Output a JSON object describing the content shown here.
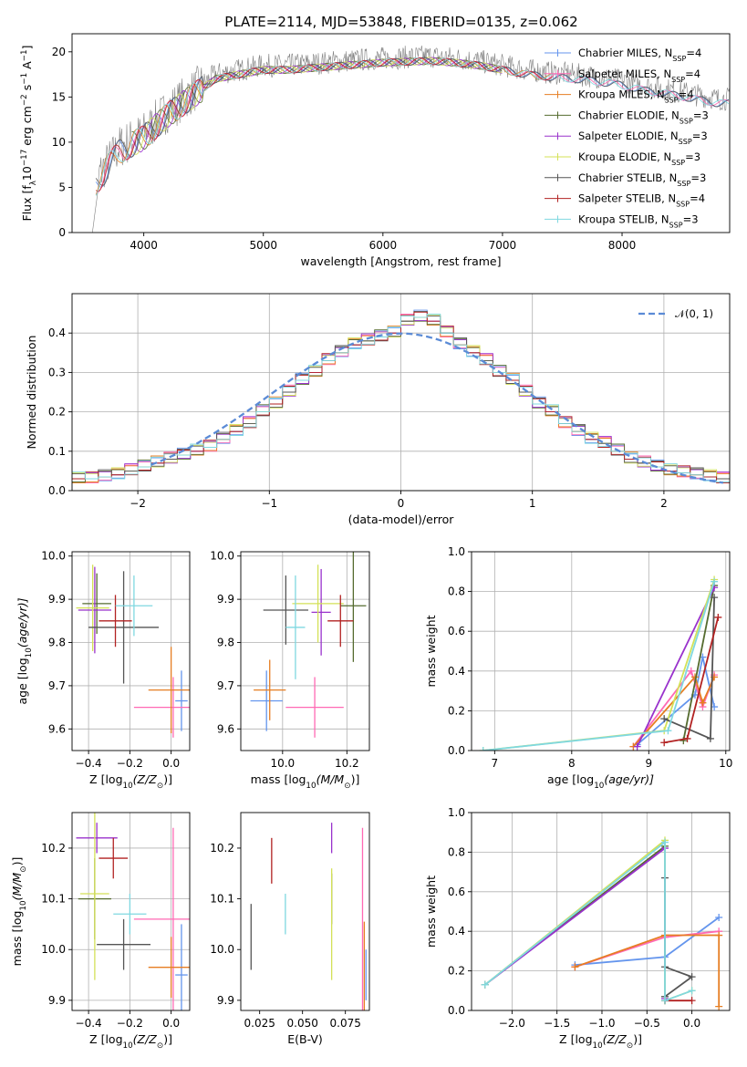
{
  "chart_data": [
    {
      "type": "line",
      "title": "PLATE=2114, MJD=53848, FIBERID=0135, z=0.062",
      "xlabel": "wavelength [Angstrom, rest frame]",
      "ylabel": "Flux [f$_\\lambda$10$^{-17}$ erg cm$^{-2}$ s$^{-1}$ A$^{-1}$]",
      "ylabel_parts": [
        "Flux [f",
        "λ",
        "10",
        "−17",
        " erg cm",
        "−2",
        " s",
        "−1",
        " A",
        "−1",
        "]"
      ],
      "xlim": [
        3400,
        8900
      ],
      "ylim": [
        0,
        22
      ],
      "xticks": [
        4000,
        5000,
        6000,
        7000,
        8000
      ],
      "yticks": [
        0,
        5,
        10,
        15,
        20
      ],
      "grid": false,
      "legend_position": "top-right",
      "x": [
        3600,
        3800,
        4000,
        4200,
        4400,
        4600,
        4800,
        5000,
        5200,
        5400,
        5600,
        5800,
        6000,
        6200,
        6400,
        6600,
        6800,
        7000,
        7200,
        7400,
        7600,
        7800,
        8000,
        8200,
        8400,
        8600,
        8800
      ],
      "y": [
        6,
        9.5,
        11,
        13.5,
        15.5,
        17.5,
        18,
        18.5,
        18.5,
        18.7,
        18.9,
        19.1,
        19.3,
        19.4,
        19.5,
        19.3,
        19,
        18.5,
        18,
        17.7,
        17.5,
        17.2,
        16.8,
        16.2,
        15.8,
        15.3,
        14.8
      ],
      "series": [
        {
          "name": "Chabrier MILES, N",
          "sub": "SSP",
          "suffix": "=4",
          "color": "#6495ed"
        },
        {
          "name": "Salpeter MILES, N",
          "sub": "SSP",
          "suffix": "=4",
          "color": "#ff69b4"
        },
        {
          "name": "Kroupa MILES, N",
          "sub": "SSP",
          "suffix": "=4",
          "color": "#e67e22"
        },
        {
          "name": "Chabrier ELODIE, N",
          "sub": "SSP",
          "suffix": "=3",
          "color": "#556b2f"
        },
        {
          "name": "Salpeter ELODIE, N",
          "sub": "SSP",
          "suffix": "=3",
          "color": "#9932cc"
        },
        {
          "name": "Kroupa ELODIE, N",
          "sub": "SSP",
          "suffix": "=3",
          "color": "#d4e157"
        },
        {
          "name": "Chabrier STELIB, N",
          "sub": "SSP",
          "suffix": "=3",
          "color": "#555555"
        },
        {
          "name": "Salpeter STELIB, N",
          "sub": "SSP",
          "suffix": "=4",
          "color": "#b22222"
        },
        {
          "name": "Kroupa STELIB, N",
          "sub": "SSP",
          "suffix": "=3",
          "color": "#7fd8e0"
        }
      ]
    },
    {
      "type": "line",
      "xlabel": "(data-model)/error",
      "ylabel": "Normed distribution",
      "xlim": [
        -2.5,
        2.5
      ],
      "ylim": [
        0,
        0.5
      ],
      "xticks": [
        -2,
        -1,
        0,
        1,
        2
      ],
      "xtick_labels": [
        "−2",
        "−1",
        "0",
        "1",
        "2"
      ],
      "yticks": [
        0,
        0.1,
        0.2,
        0.3,
        0.4
      ],
      "ytick_labels": [
        "0.0",
        "0.1",
        "0.2",
        "0.3",
        "0.4"
      ],
      "grid": true,
      "legend_position": "top-right",
      "normal_label": "𝒩(0, 1)",
      "normal_color": "#5b8bd6",
      "histogram_bin_width": 0.1,
      "histogram": [
        0.03,
        0.03,
        0.035,
        0.04,
        0.05,
        0.06,
        0.07,
        0.08,
        0.09,
        0.1,
        0.11,
        0.13,
        0.15,
        0.17,
        0.2,
        0.22,
        0.25,
        0.28,
        0.3,
        0.33,
        0.35,
        0.37,
        0.38,
        0.39,
        0.4,
        0.43,
        0.44,
        0.43,
        0.4,
        0.37,
        0.35,
        0.33,
        0.3,
        0.28,
        0.25,
        0.22,
        0.2,
        0.17,
        0.15,
        0.13,
        0.12,
        0.1,
        0.08,
        0.07,
        0.06,
        0.05,
        0.045,
        0.04,
        0.035,
        0.03
      ]
    },
    {
      "type": "scatter",
      "xlabel": "Z [log$_{10}$(Z/Z$_\\odot$)]",
      "ylabel": "age [log$_{10}$(age/yr)]",
      "xlim": [
        -0.48,
        0.09
      ],
      "ylim": [
        9.55,
        10.01
      ],
      "xticks": [
        -0.4,
        -0.2,
        0.0
      ],
      "xtick_labels": [
        "−0.4",
        "−0.2",
        "0.0"
      ],
      "yticks": [
        9.6,
        9.7,
        9.8,
        9.9,
        10.0
      ],
      "ytick_labels": [
        "9.6",
        "9.7",
        "9.8",
        "9.9",
        "10.0"
      ],
      "grid": true,
      "points": [
        {
          "x": 0.05,
          "y": 9.665,
          "xerr": 0.03,
          "yerr": 0.07
        },
        {
          "x": 0.01,
          "y": 9.65,
          "xerr": 0.19,
          "yerr": 0.07
        },
        {
          "x": 0.0,
          "y": 9.69,
          "xerr": 0.11,
          "yerr": 0.1
        },
        {
          "x": -0.36,
          "y": 9.89,
          "xerr": 0.07,
          "yerr": 0.07
        },
        {
          "x": -0.37,
          "y": 9.875,
          "xerr": 0.08,
          "yerr": 0.1
        },
        {
          "x": -0.38,
          "y": 9.88,
          "xerr": 0.08,
          "yerr": 0.1
        },
        {
          "x": -0.23,
          "y": 9.835,
          "xerr": 0.17,
          "yerr": 0.13
        },
        {
          "x": -0.27,
          "y": 9.85,
          "xerr": 0.08,
          "yerr": 0.06
        },
        {
          "x": -0.18,
          "y": 9.885,
          "xerr": 0.09,
          "yerr": 0.07
        }
      ]
    },
    {
      "type": "scatter",
      "xlabel": "mass [log$_{10}$(M/M$_\\odot$)]",
      "ylabel": "",
      "xlim": [
        9.87,
        10.27
      ],
      "ylim": [
        9.55,
        10.01
      ],
      "xticks": [
        10.0,
        10.2
      ],
      "xtick_labels": [
        "10.0",
        "10.2"
      ],
      "yticks": [
        9.6,
        9.7,
        9.8,
        9.9,
        10.0
      ],
      "ytick_labels": [
        "9.6",
        "9.7",
        "9.8",
        "9.9",
        "10.0"
      ],
      "grid": true,
      "points": [
        {
          "x": 9.95,
          "y": 9.665,
          "xerr": 0.05,
          "yerr": 0.07
        },
        {
          "x": 10.1,
          "y": 9.65,
          "xerr": 0.09,
          "yerr": 0.07
        },
        {
          "x": 9.96,
          "y": 9.69,
          "xerr": 0.05,
          "yerr": 0.07
        },
        {
          "x": 10.22,
          "y": 9.885,
          "xerr": 0.04,
          "yerr": 0.13
        },
        {
          "x": 10.12,
          "y": 9.87,
          "xerr": 0.03,
          "yerr": 0.1
        },
        {
          "x": 10.11,
          "y": 9.89,
          "xerr": 0.08,
          "yerr": 0.09
        },
        {
          "x": 10.01,
          "y": 9.875,
          "xerr": 0.07,
          "yerr": 0.08
        },
        {
          "x": 10.18,
          "y": 9.85,
          "xerr": 0.04,
          "yerr": 0.06
        },
        {
          "x": 10.04,
          "y": 9.835,
          "xerr": 0.03,
          "yerr": 0.12
        }
      ]
    },
    {
      "type": "line",
      "xlabel": "age [log$_{10}$(age/yr)]",
      "ylabel": "mass weight",
      "xlim": [
        6.7,
        10.05
      ],
      "ylim": [
        0,
        1
      ],
      "xticks": [
        7,
        8,
        9,
        10
      ],
      "yticks": [
        0,
        0.2,
        0.4,
        0.6,
        0.8,
        1.0
      ],
      "xtick_labels": [
        "7",
        "8",
        "9",
        "10"
      ],
      "ytick_labels": [
        "0.0",
        "0.2",
        "0.4",
        "0.6",
        "0.8",
        "1.0"
      ],
      "grid": true,
      "series": [
        {
          "x": [
            8.85,
            9.6,
            9.7,
            9.85
          ],
          "y": [
            0.03,
            0.28,
            0.47,
            0.22
          ]
        },
        {
          "x": [
            8.8,
            9.55,
            9.7,
            9.85
          ],
          "y": [
            0.02,
            0.4,
            0.22,
            0.38
          ]
        },
        {
          "x": [
            8.8,
            9.6,
            9.7,
            9.85
          ],
          "y": [
            0.02,
            0.37,
            0.24,
            0.37
          ]
        },
        {
          "x": [
            9.45,
            9.85
          ],
          "y": [
            0.05,
            0.83
          ]
        },
        {
          "x": [
            8.85,
            9.85
          ],
          "y": [
            0.02,
            0.82
          ]
        },
        {
          "x": [
            6.85,
            9.2,
            9.85
          ],
          "y": [
            0.0,
            0.1,
            0.86
          ]
        },
        {
          "x": [
            9.2,
            9.8,
            9.85
          ],
          "y": [
            0.16,
            0.06,
            0.77
          ]
        },
        {
          "x": [
            9.2,
            9.5,
            9.9
          ],
          "y": [
            0.04,
            0.06,
            0.67
          ]
        },
        {
          "x": [
            6.85,
            9.25,
            9.85
          ],
          "y": [
            0.0,
            0.1,
            0.85
          ]
        }
      ]
    },
    {
      "type": "scatter",
      "xlabel": "Z [log$_{10}$(Z/Z$_\\odot$)]",
      "ylabel": "mass [log$_{10}$(M/M$_\\odot$)]",
      "xlim": [
        -0.48,
        0.09
      ],
      "ylim": [
        9.88,
        10.27
      ],
      "xticks": [
        -0.4,
        -0.2,
        0.0
      ],
      "xtick_labels": [
        "−0.4",
        "−0.2",
        "0.0"
      ],
      "yticks": [
        9.9,
        10.0,
        10.1,
        10.2
      ],
      "ytick_labels": [
        "9.9",
        "10.0",
        "10.1",
        "10.2"
      ],
      "grid": true,
      "points": [
        {
          "x": 0.05,
          "y": 9.95,
          "xerr": 0.03,
          "yerr": 0.1
        },
        {
          "x": 0.01,
          "y": 10.06,
          "xerr": 0.19,
          "yerr": 0.18
        },
        {
          "x": 0.0,
          "y": 9.965,
          "xerr": 0.11,
          "yerr": 0.06
        },
        {
          "x": -0.37,
          "y": 10.1,
          "xerr": 0.08,
          "yerr": 0.08
        },
        {
          "x": -0.36,
          "y": 10.22,
          "xerr": 0.1,
          "yerr": 0.03
        },
        {
          "x": -0.37,
          "y": 10.11,
          "xerr": 0.07,
          "yerr": 0.17
        },
        {
          "x": -0.23,
          "y": 10.01,
          "xerr": 0.13,
          "yerr": 0.05
        },
        {
          "x": -0.28,
          "y": 10.18,
          "xerr": 0.07,
          "yerr": 0.04
        },
        {
          "x": -0.2,
          "y": 10.07,
          "xerr": 0.08,
          "yerr": 0.04
        }
      ]
    },
    {
      "type": "scatter",
      "xlabel": "E(B-V)",
      "ylabel": "",
      "xlim": [
        0.014,
        0.089
      ],
      "ylim": [
        9.88,
        10.27
      ],
      "xticks": [
        0.025,
        0.05,
        0.075
      ],
      "xtick_labels": [
        "0.025",
        "0.050",
        "0.075"
      ],
      "yticks": [
        9.9,
        10.0,
        10.1,
        10.2
      ],
      "ytick_labels": [
        "9.9",
        "10.0",
        "10.1",
        "10.2"
      ],
      "grid": false,
      "points": [
        {
          "x": 0.087,
          "y": 9.95,
          "yerr": 0.05
        },
        {
          "x": 0.085,
          "y": 10.06,
          "yerr": 0.18
        },
        {
          "x": 0.086,
          "y": 9.965,
          "yerr": 0.09
        },
        {
          "x": 0.067,
          "y": 10.1,
          "yerr": 0.05
        },
        {
          "x": 0.067,
          "y": 10.22,
          "yerr": 0.03
        },
        {
          "x": 0.067,
          "y": 10.05,
          "yerr": 0.11
        },
        {
          "x": 0.02,
          "y": 10.025,
          "yerr": 0.065
        },
        {
          "x": 0.032,
          "y": 10.175,
          "yerr": 0.045
        },
        {
          "x": 0.04,
          "y": 10.07,
          "yerr": 0.04
        }
      ]
    },
    {
      "type": "line",
      "xlabel": "Z [log$_{10}$(Z/Z$_\\odot$)]",
      "ylabel": "mass weight",
      "xlim": [
        -2.45,
        0.42
      ],
      "ylim": [
        0,
        1
      ],
      "xticks": [
        -2.0,
        -1.5,
        -1.0,
        -0.5,
        0.0
      ],
      "xtick_labels": [
        "−2.0",
        "−1.5",
        "−1.0",
        "−0.5",
        "0.0"
      ],
      "yticks": [
        0,
        0.2,
        0.4,
        0.6,
        0.8,
        1.0
      ],
      "ytick_labels": [
        "0.0",
        "0.2",
        "0.4",
        "0.6",
        "0.8",
        "1.0"
      ],
      "grid": true,
      "series": [
        {
          "x": [
            -1.3,
            -0.3,
            0.3
          ],
          "y": [
            0.23,
            0.27,
            0.47
          ]
        },
        {
          "x": [
            -1.3,
            -0.3,
            0.3
          ],
          "y": [
            0.22,
            0.37,
            0.4
          ]
        },
        {
          "x": [
            -1.3,
            -0.3,
            0.3,
            0.3
          ],
          "y": [
            0.22,
            0.38,
            0.38,
            0.02
          ]
        },
        {
          "x": [
            -2.3,
            -0.3,
            -0.3
          ],
          "y": [
            0.13,
            0.83,
            0.05
          ]
        },
        {
          "x": [
            -2.3,
            -0.3,
            -0.3
          ],
          "y": [
            0.13,
            0.82,
            0.06
          ]
        },
        {
          "x": [
            -2.3,
            -0.3,
            -0.3,
            0.0
          ],
          "y": [
            0.13,
            0.86,
            0.05,
            0.1
          ]
        },
        {
          "x": [
            -0.3,
            -0.3,
            0.0,
            -0.3
          ],
          "y": [
            0.67,
            0.22,
            0.17,
            0.07
          ]
        },
        {
          "x": [
            -0.3,
            0.0
          ],
          "y": [
            0.05,
            0.05
          ]
        },
        {
          "x": [
            -2.3,
            -0.3,
            -0.3,
            0.0
          ],
          "y": [
            0.13,
            0.85,
            0.05,
            0.1
          ]
        }
      ]
    }
  ]
}
